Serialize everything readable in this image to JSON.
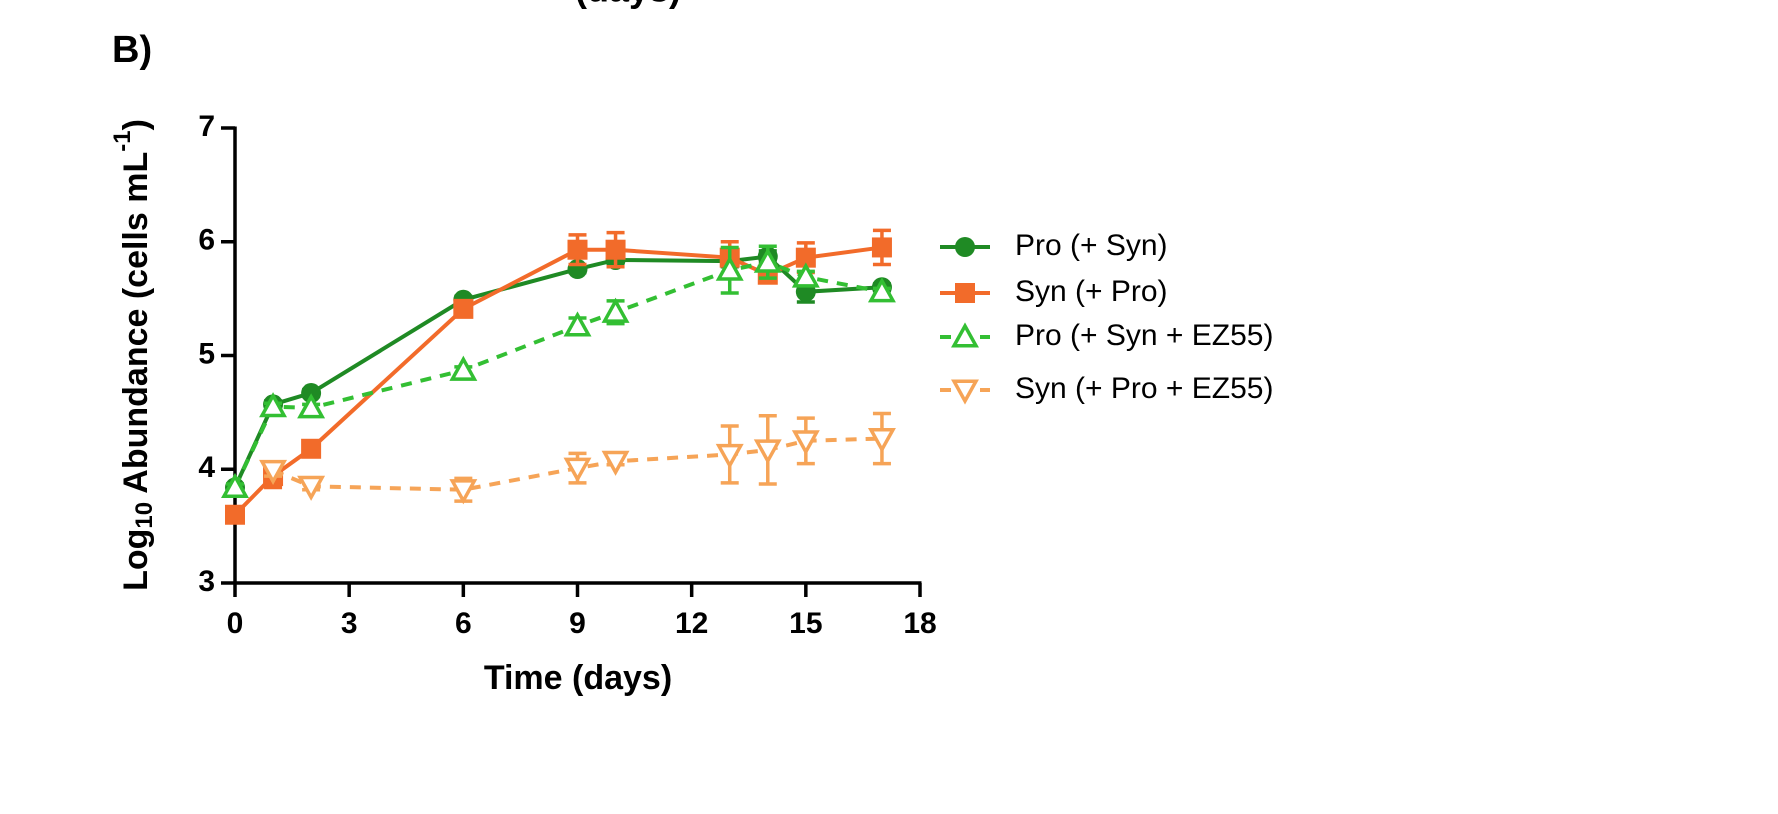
{
  "chart_data": {
    "type": "line",
    "cropped_text": "(days)",
    "panel_label": "B)",
    "x_label": "Time (days)",
    "y_label": {
      "pre": "Log",
      "sub": "10",
      "mid": " Abundance (cells mL",
      "sup": "-1",
      "post": ")"
    },
    "xlim": [
      0,
      18
    ],
    "xticks": [
      0,
      3,
      6,
      9,
      12,
      15,
      18
    ],
    "ylim": [
      3,
      7
    ],
    "yticks": [
      3,
      4,
      5,
      6,
      7
    ],
    "series": [
      {
        "name": "Pro (+ Syn)",
        "color": "#1f8a24",
        "marker": "circle",
        "dashed": false,
        "x": [
          0,
          1,
          2,
          6,
          9,
          10,
          13,
          14,
          15,
          17
        ],
        "values": [
          3.84,
          4.57,
          4.67,
          5.49,
          5.76,
          5.84,
          5.83,
          5.87,
          5.56,
          5.6
        ],
        "errors": [
          0.03,
          0.03,
          0.03,
          0.03,
          0.03,
          0.03,
          0.05,
          0.05,
          0.09,
          0.03
        ]
      },
      {
        "name": "Syn (+ Pro)",
        "color": "#f26b2a",
        "marker": "square",
        "dashed": false,
        "x": [
          0,
          1,
          2,
          6,
          9,
          10,
          13,
          14,
          15,
          17
        ],
        "values": [
          3.6,
          3.94,
          4.18,
          5.41,
          5.93,
          5.93,
          5.86,
          5.71,
          5.86,
          5.95
        ],
        "errors": [
          0.03,
          0.1,
          0.03,
          0.03,
          0.13,
          0.15,
          0.14,
          0.03,
          0.13,
          0.15
        ]
      },
      {
        "name": "Pro (+ Syn + EZ55)",
        "color": "#33bf33",
        "marker": "triangle-up",
        "dashed": true,
        "x": [
          0,
          1,
          2,
          6,
          9,
          10,
          13,
          14,
          15,
          17
        ],
        "values": [
          3.84,
          4.55,
          4.54,
          4.87,
          5.26,
          5.38,
          5.75,
          5.82,
          5.69,
          5.56
        ],
        "errors": [
          0.03,
          0.03,
          0.03,
          0.03,
          0.07,
          0.1,
          0.2,
          0.14,
          0.05,
          0.03
        ]
      },
      {
        "name": "Syn (+ Pro + EZ55)",
        "color": "#f6a457",
        "marker": "triangle-down",
        "dashed": true,
        "x": [
          1,
          2,
          6,
          9,
          10,
          13,
          14,
          15,
          17
        ],
        "values": [
          3.99,
          3.85,
          3.82,
          4.01,
          4.07,
          4.13,
          4.17,
          4.25,
          4.27
        ],
        "errors": [
          0.05,
          0.03,
          0.1,
          0.13,
          0.03,
          0.25,
          0.3,
          0.2,
          0.22
        ]
      }
    ]
  }
}
